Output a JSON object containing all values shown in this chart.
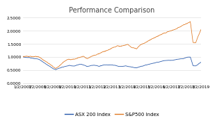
{
  "title": "Performance Comparison",
  "ylim": [
    0.0,
    2.6
  ],
  "yticks": [
    0.0,
    0.5,
    1.0,
    1.5,
    2.0,
    2.5
  ],
  "ytick_labels": [
    "0.0000",
    "0.5000",
    "1.0000",
    "1.5000",
    "2.0000",
    "2.5000"
  ],
  "xtick_labels": [
    "1/2/2007",
    "1/2/2008",
    "1/2/2009",
    "1/2/2010",
    "1/2/2011",
    "1/2/2012",
    "1/2/2013",
    "1/2/2014",
    "1/2/2015",
    "1/2/2016",
    "1/2/2017",
    "1/2/2018",
    "1/2/2019"
  ],
  "asx_color": "#2255aa",
  "sp500_color": "#e07820",
  "legend_labels": [
    "ASX 200 Index",
    "S&P500 Index"
  ],
  "background_color": "#ffffff",
  "grid_color": "#d8d8d8",
  "title_fontsize": 7,
  "tick_fontsize": 4.2,
  "legend_fontsize": 5.0,
  "n_points": 3276,
  "linewidth": 0.55
}
